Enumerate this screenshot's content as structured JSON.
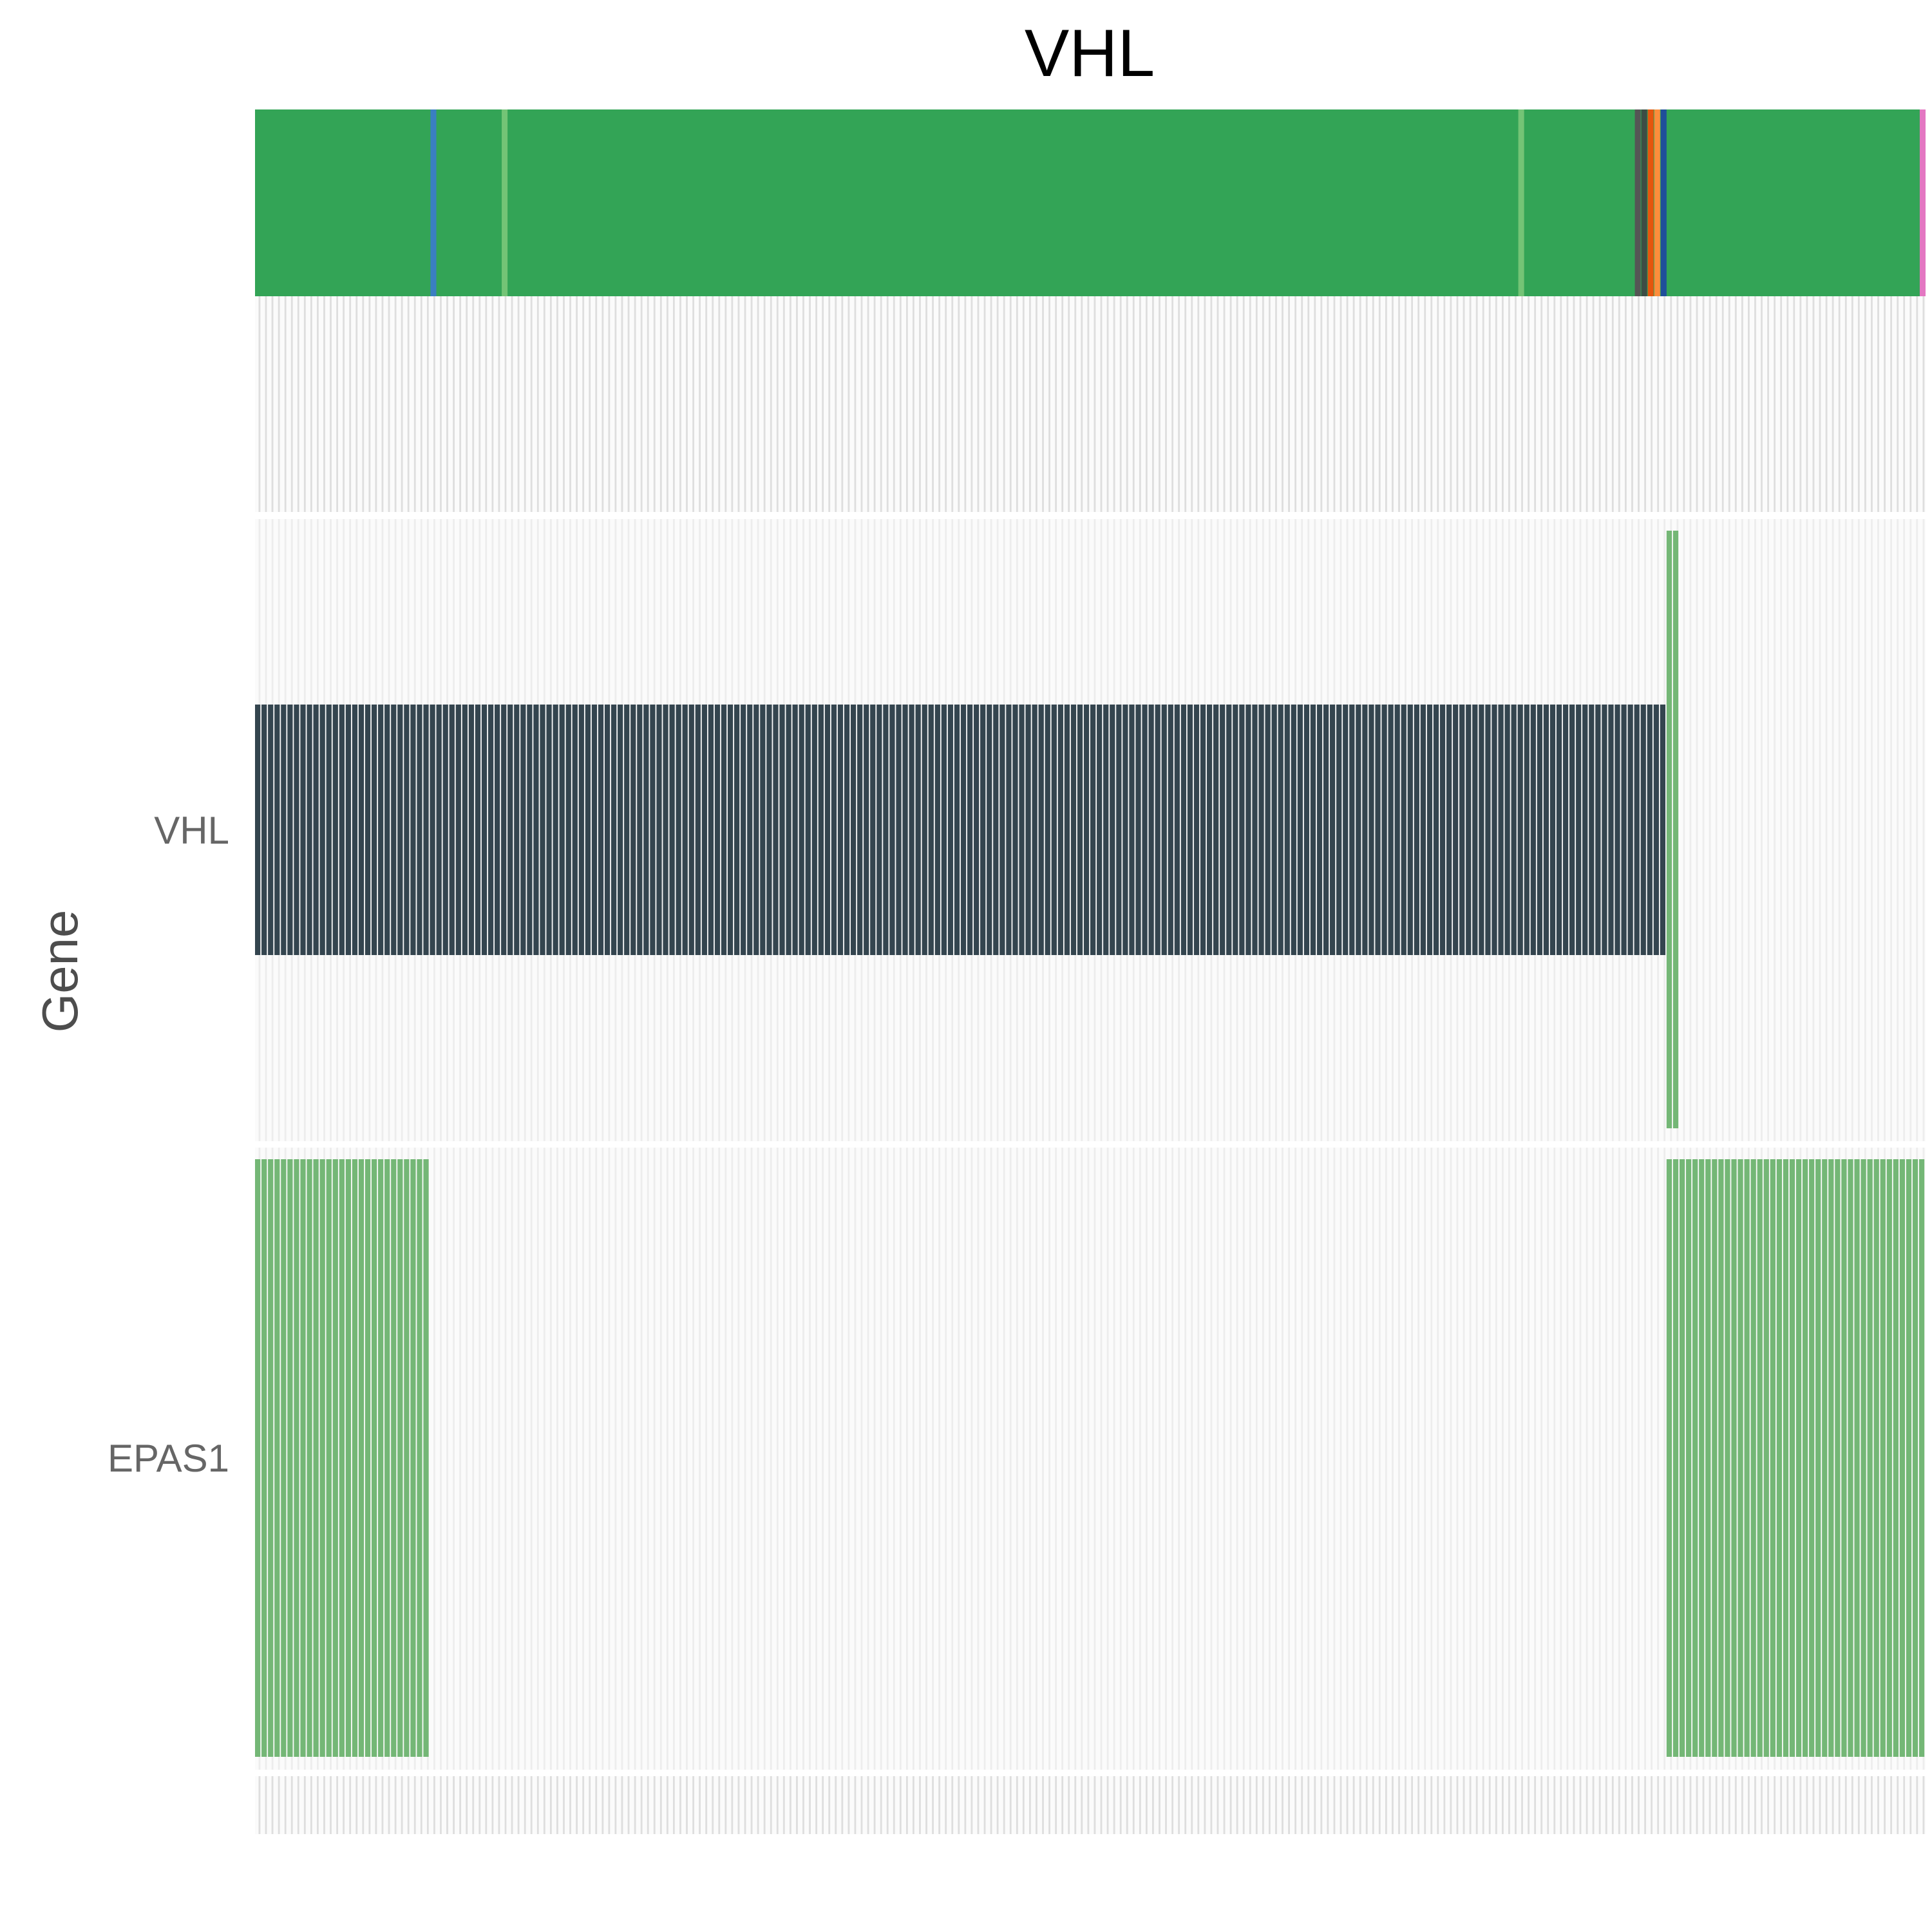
{
  "chart_data": {
    "type": "heatmap",
    "title": "VHL",
    "ylabel": "Gene",
    "xlabel": "",
    "n_samples": 258,
    "genes": [
      "VHL",
      "EPAS1"
    ],
    "annotation_track": {
      "base_color": "#33a456",
      "markers": [
        {
          "sample": 27,
          "color": "#3a7fc2"
        },
        {
          "sample": 38,
          "color": "#74c476"
        },
        {
          "sample": 195,
          "color": "#74c476"
        },
        {
          "sample": 213,
          "color": "#555555"
        },
        {
          "sample": 214,
          "color": "#3c4d45"
        },
        {
          "sample": 215,
          "color": "#e6550d"
        },
        {
          "sample": 216,
          "color": "#fd8d3c"
        },
        {
          "sample": 217,
          "color": "#1f4e9a"
        },
        {
          "sample": 257,
          "color": "#e377c2"
        }
      ]
    },
    "rows": [
      {
        "gene": "VHL",
        "segments": [
          {
            "start": 0,
            "end": 218,
            "color": "#34454f",
            "height": "partial"
          },
          {
            "start": 218,
            "end": 220,
            "color": "#74b776",
            "height": "full"
          }
        ]
      },
      {
        "gene": "EPAS1",
        "segments": [
          {
            "start": 0,
            "end": 27,
            "color": "#74b776",
            "height": "full"
          },
          {
            "start": 218,
            "end": 258,
            "color": "#74b776",
            "height": "full"
          }
        ]
      }
    ],
    "colors": {
      "background": "#f7f7f7",
      "sample_line": "#e6e6e6",
      "cell_gap": "#ffffff"
    }
  }
}
